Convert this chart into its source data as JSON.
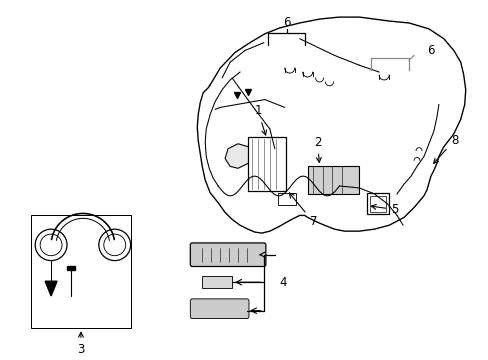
{
  "background_color": "#ffffff",
  "line_color": "#000000",
  "fig_width": 4.89,
  "fig_height": 3.6,
  "dpi": 100,
  "label_fontsize": 8.5,
  "line_width": 0.9,
  "gray_color": "#888888"
}
